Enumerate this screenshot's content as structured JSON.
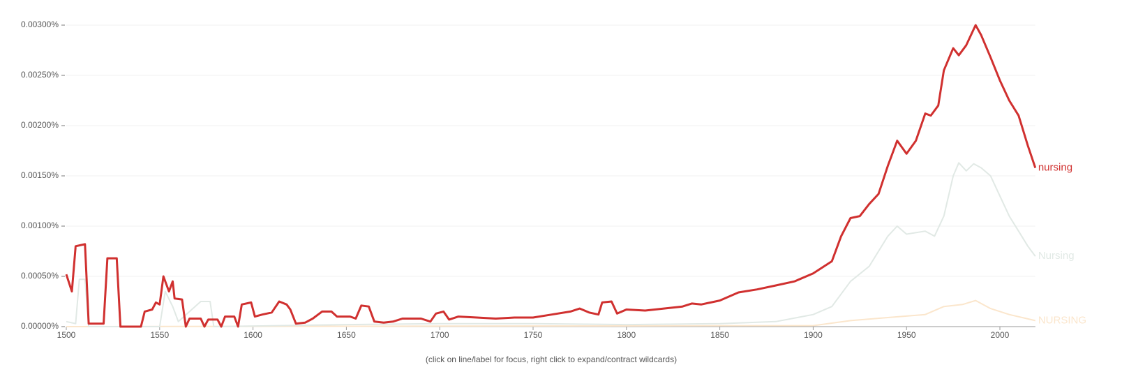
{
  "chart_data": {
    "type": "line",
    "caption": "(click on line/label for focus, right click to expand/contract wildcards)",
    "xlim": [
      1500,
      2019
    ],
    "xticks": [
      1500,
      1550,
      1600,
      1650,
      1700,
      1750,
      1800,
      1850,
      1900,
      1950,
      2000
    ],
    "ylim": [
      0,
      0.003
    ],
    "yticks": [
      {
        "value": 0,
        "label": "0.00000%"
      },
      {
        "value": 0.0005,
        "label": "0.00050%"
      },
      {
        "value": 0.001,
        "label": "0.00100%"
      },
      {
        "value": 0.0015,
        "label": "0.00150%"
      },
      {
        "value": 0.002,
        "label": "0.00200%"
      },
      {
        "value": 0.0025,
        "label": "0.00250%"
      },
      {
        "value": 0.003,
        "label": "0.00300%"
      }
    ],
    "grid": true,
    "series": [
      {
        "name": "NURSING",
        "color": "#fbe6cc",
        "width": 2,
        "x": [
          1500,
          1900,
          1920,
          1940,
          1960,
          1970,
          1980,
          1987,
          1995,
          2005,
          2019
        ],
        "values": [
          0,
          1e-05,
          6e-05,
          9e-05,
          0.00012,
          0.0002,
          0.00022,
          0.00026,
          0.00018,
          0.00012,
          6e-05
        ]
      },
      {
        "name": "Nursing",
        "color": "#e1e9e5",
        "width": 2,
        "x": [
          1500,
          1505,
          1507,
          1510,
          1512,
          1550,
          1553,
          1557,
          1560,
          1572,
          1577,
          1579,
          1650,
          1700,
          1750,
          1800,
          1850,
          1880,
          1900,
          1910,
          1920,
          1930,
          1940,
          1945,
          1950,
          1960,
          1965,
          1970,
          1975,
          1978,
          1982,
          1986,
          1990,
          1995,
          2000,
          2005,
          2010,
          2015,
          2019
        ],
        "values": [
          5e-05,
          3e-05,
          0.00047,
          0.00047,
          0,
          0,
          0.00035,
          0.0002,
          5e-05,
          0.00025,
          0.00025,
          0,
          2e-05,
          3e-05,
          3e-05,
          2e-05,
          3e-05,
          5e-05,
          0.00012,
          0.0002,
          0.00045,
          0.0006,
          0.0009,
          0.001,
          0.00092,
          0.00095,
          0.0009,
          0.0011,
          0.0015,
          0.00163,
          0.00155,
          0.00162,
          0.00158,
          0.0015,
          0.0013,
          0.0011,
          0.00095,
          0.0008,
          0.0007
        ]
      },
      {
        "name": "nursing",
        "color": "#d0302f",
        "width": 3,
        "x": [
          1500,
          1503,
          1505,
          1510,
          1512,
          1515,
          1520,
          1522,
          1527,
          1529,
          1540,
          1542,
          1546,
          1548,
          1550,
          1552,
          1555,
          1557,
          1558,
          1562,
          1564,
          1566,
          1572,
          1574,
          1576,
          1581,
          1583,
          1585,
          1590,
          1592,
          1594,
          1599,
          1601,
          1605,
          1610,
          1614,
          1618,
          1620,
          1623,
          1628,
          1632,
          1637,
          1642,
          1645,
          1652,
          1655,
          1658,
          1662,
          1665,
          1670,
          1675,
          1680,
          1690,
          1695,
          1698,
          1702,
          1705,
          1710,
          1720,
          1730,
          1740,
          1750,
          1760,
          1770,
          1775,
          1780,
          1785,
          1787,
          1792,
          1795,
          1800,
          1810,
          1820,
          1830,
          1835,
          1840,
          1850,
          1860,
          1870,
          1880,
          1890,
          1900,
          1910,
          1915,
          1920,
          1925,
          1930,
          1935,
          1940,
          1945,
          1950,
          1955,
          1960,
          1963,
          1967,
          1970,
          1975,
          1978,
          1982,
          1987,
          1990,
          1995,
          2000,
          2005,
          2010,
          2015,
          2019
        ],
        "values": [
          0.00052,
          0.00035,
          0.0008,
          0.00082,
          3e-05,
          3e-05,
          3e-05,
          0.00068,
          0.00068,
          0,
          0,
          0.00015,
          0.00017,
          0.00024,
          0.00022,
          0.0005,
          0.00035,
          0.00045,
          0.00028,
          0.00027,
          0,
          8e-05,
          8e-05,
          0,
          7e-05,
          7e-05,
          0,
          0.0001,
          0.0001,
          0,
          0.00022,
          0.00024,
          0.0001,
          0.00012,
          0.00014,
          0.00025,
          0.00022,
          0.00017,
          3e-05,
          4e-05,
          8e-05,
          0.00015,
          0.00015,
          0.0001,
          0.0001,
          8e-05,
          0.00021,
          0.0002,
          5e-05,
          4e-05,
          5e-05,
          8e-05,
          8e-05,
          5e-05,
          0.00013,
          0.00015,
          7e-05,
          0.0001,
          9e-05,
          8e-05,
          9e-05,
          9e-05,
          0.00012,
          0.00015,
          0.00018,
          0.00014,
          0.00012,
          0.00024,
          0.00025,
          0.00013,
          0.00017,
          0.00016,
          0.00018,
          0.0002,
          0.00023,
          0.00022,
          0.00026,
          0.00034,
          0.00037,
          0.00041,
          0.00045,
          0.00053,
          0.00065,
          0.0009,
          0.00108,
          0.0011,
          0.00122,
          0.00132,
          0.0016,
          0.00185,
          0.00172,
          0.00185,
          0.00212,
          0.0021,
          0.0022,
          0.00255,
          0.00277,
          0.0027,
          0.0028,
          0.003,
          0.0029,
          0.00268,
          0.00245,
          0.00225,
          0.0021,
          0.0018,
          0.00158
        ]
      }
    ]
  }
}
